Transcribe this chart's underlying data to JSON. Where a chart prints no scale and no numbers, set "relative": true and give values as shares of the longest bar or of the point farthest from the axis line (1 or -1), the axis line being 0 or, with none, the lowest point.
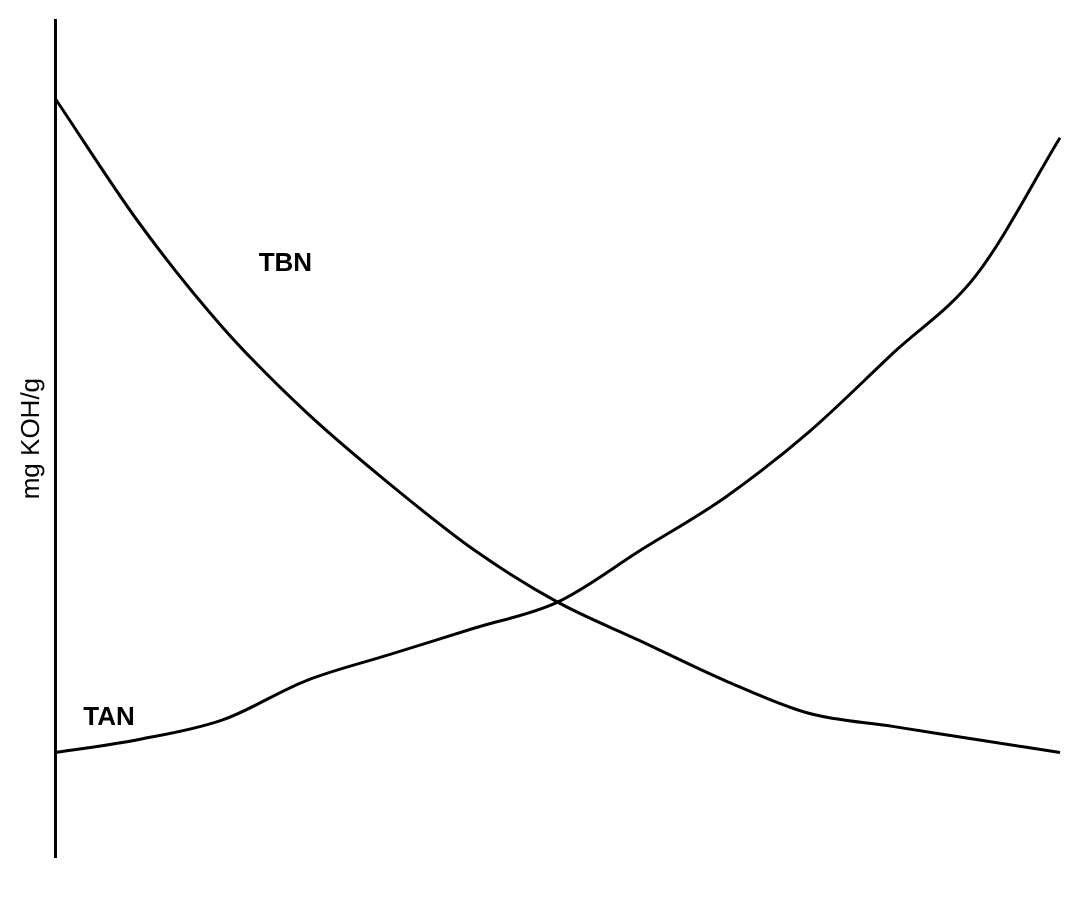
{
  "chart_data": {
    "type": "line",
    "relative": true,
    "ylabel": "mg KOH/g",
    "categories": [
      null,
      null,
      null,
      null,
      null,
      null,
      null,
      null,
      null,
      null,
      null,
      null,
      null
    ],
    "series": [
      {
        "name": "TBN",
        "color": "#000000",
        "values": [
          1,
          0.81,
          0.65,
          0.52,
          0.41,
          0.31,
          0.23,
          0.17,
          0.11,
          0.06,
          0.04,
          0.02,
          0
        ]
      },
      {
        "name": "TAN",
        "color": "#000000",
        "values": [
          0,
          0.02,
          0.05,
          0.11,
          0.15,
          0.19,
          0.23,
          0.31,
          0.39,
          0.49,
          0.61,
          0.73,
          0.94
        ]
      }
    ],
    "legend": false,
    "grid": false,
    "marker": "none",
    "line_style": "solid"
  }
}
